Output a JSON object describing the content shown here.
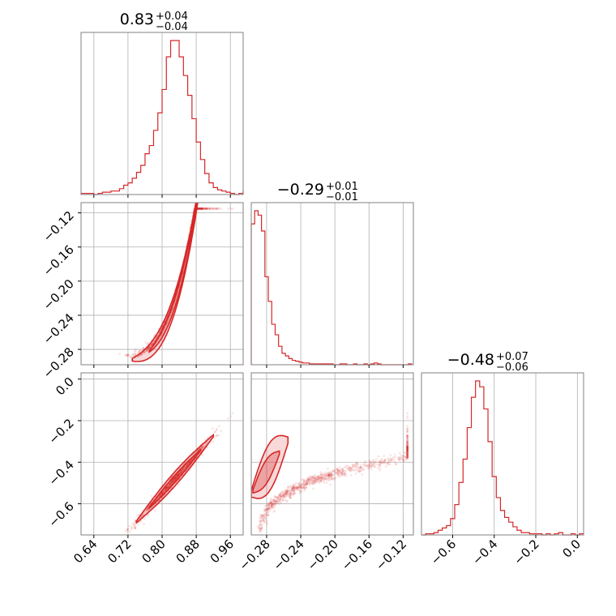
{
  "chart_data": {
    "type": "corner",
    "color": "#d62728",
    "parameters": [
      {
        "title": {
          "median": "0.83",
          "upper": "+0.04",
          "lower": "−0.04"
        },
        "range": [
          0.61,
          0.99
        ],
        "ticks": [
          0.64,
          0.72,
          0.8,
          0.88,
          0.96
        ],
        "tick_labels": [
          "0.64",
          "0.72",
          "0.80",
          "0.88",
          "0.96"
        ],
        "histogram": {
          "bins": [
            0.61,
            0.62,
            0.63,
            0.64,
            0.65,
            0.66,
            0.67,
            0.68,
            0.69,
            0.7,
            0.71,
            0.72,
            0.73,
            0.74,
            0.75,
            0.76,
            0.77,
            0.78,
            0.79,
            0.8,
            0.81,
            0.82,
            0.83,
            0.84,
            0.85,
            0.86,
            0.87,
            0.88,
            0.89,
            0.9,
            0.91,
            0.92,
            0.93,
            0.94,
            0.95,
            0.96,
            0.97,
            0.98,
            0.99
          ],
          "counts": [
            1,
            1,
            1,
            0,
            1,
            2,
            2,
            3,
            3,
            5,
            8,
            10,
            14,
            19,
            25,
            35,
            42,
            55,
            70,
            90,
            118,
            132,
            132,
            118,
            102,
            85,
            65,
            45,
            30,
            18,
            10,
            6,
            4,
            3,
            2,
            1,
            0,
            1,
            3
          ]
        }
      },
      {
        "title": {
          "median": "−0.29",
          "upper": "+0.01",
          "lower": "−0.01"
        },
        "range": [
          -0.298,
          -0.108
        ],
        "ticks": [
          -0.28,
          -0.24,
          -0.2,
          -0.16,
          -0.12
        ],
        "tick_labels": [
          "−0.28",
          "−0.24",
          "−0.20",
          "−0.16",
          "−0.12"
        ],
        "histogram": {
          "bins": [
            -0.298,
            -0.294,
            -0.29,
            -0.286,
            -0.282,
            -0.278,
            -0.274,
            -0.27,
            -0.266,
            -0.262,
            -0.258,
            -0.254,
            -0.25,
            -0.246,
            -0.242,
            -0.238,
            -0.234,
            -0.23,
            -0.226,
            -0.222,
            -0.218,
            -0.214,
            -0.21,
            -0.206,
            -0.202,
            -0.198,
            -0.194,
            -0.19,
            -0.186,
            -0.182,
            -0.178,
            -0.174,
            -0.17,
            -0.166,
            -0.162,
            -0.158,
            -0.154,
            -0.15,
            -0.146,
            -0.142,
            -0.138,
            -0.134,
            -0.13,
            -0.126,
            -0.122,
            -0.118,
            -0.114,
            -0.11
          ],
          "counts": [
            160,
            175,
            170,
            152,
            100,
            72,
            46,
            34,
            21,
            13,
            10,
            7,
            5,
            4,
            3,
            2,
            2,
            1,
            1,
            1,
            1,
            1,
            1,
            1,
            0,
            0,
            1,
            1,
            0,
            0,
            1,
            0,
            0,
            1,
            0,
            1,
            2,
            1,
            0,
            0,
            0,
            0,
            0,
            0,
            0,
            0,
            1
          ]
        }
      },
      {
        "title": {
          "median": "−0.48",
          "upper": "+0.07",
          "lower": "−0.06"
        },
        "range": [
          -0.75,
          0.03
        ],
        "ticks": [
          -0.6,
          -0.4,
          -0.2,
          0.0
        ],
        "tick_labels": [
          "−0.6",
          "−0.4",
          "−0.2",
          "0.0"
        ],
        "histogram": {
          "bins": [
            -0.75,
            -0.73,
            -0.71,
            -0.69,
            -0.67,
            -0.65,
            -0.63,
            -0.61,
            -0.59,
            -0.57,
            -0.55,
            -0.53,
            -0.51,
            -0.49,
            -0.47,
            -0.45,
            -0.43,
            -0.41,
            -0.39,
            -0.37,
            -0.35,
            -0.33,
            -0.31,
            -0.29,
            -0.27,
            -0.25,
            -0.23,
            -0.21,
            -0.19,
            -0.17,
            -0.15,
            -0.13,
            -0.11,
            -0.09,
            -0.07,
            -0.05,
            -0.03,
            -0.01,
            0.01,
            0.03
          ],
          "counts": [
            0,
            1,
            1,
            2,
            4,
            6,
            8,
            14,
            26,
            45,
            65,
            92,
            118,
            132,
            127,
            108,
            80,
            50,
            32,
            21,
            15,
            11,
            7,
            4,
            2,
            2,
            1,
            1,
            1,
            0,
            1,
            0,
            1,
            2,
            0,
            0,
            1,
            0,
            1
          ]
        }
      }
    ]
  }
}
